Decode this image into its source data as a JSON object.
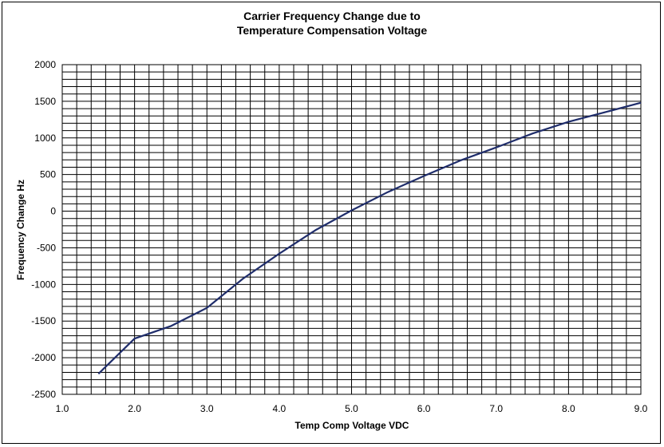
{
  "chart_data": {
    "type": "line",
    "title": "Carrier Frequency Change due to",
    "subtitle": "Temperature Compensation Voltage",
    "xlabel": "Temp Comp Voltage VDC",
    "ylabel": "Frequency Change Hz",
    "xlim": [
      1.0,
      9.0
    ],
    "ylim": [
      -2500,
      2000
    ],
    "x_ticks": [
      "1.0",
      "2.0",
      "3.0",
      "4.0",
      "5.0",
      "6.0",
      "7.0",
      "8.0",
      "9.0"
    ],
    "y_ticks": [
      "2000",
      "1500",
      "1000",
      "500",
      "0",
      "-500",
      "-1000",
      "-1500",
      "-2000",
      "-2500"
    ],
    "grid": true,
    "line_color": "#1f2d6b",
    "series": [
      {
        "x": [
          1.5,
          2.0,
          2.5,
          3.0,
          3.5,
          4.0,
          4.5,
          5.0,
          5.5,
          6.0,
          6.5,
          7.0,
          7.5,
          8.0,
          8.5,
          9.0
        ],
        "y": [
          -2220,
          -1740,
          -1570,
          -1320,
          -920,
          -580,
          -260,
          10,
          260,
          480,
          690,
          870,
          1060,
          1220,
          1350,
          1480
        ]
      }
    ]
  }
}
